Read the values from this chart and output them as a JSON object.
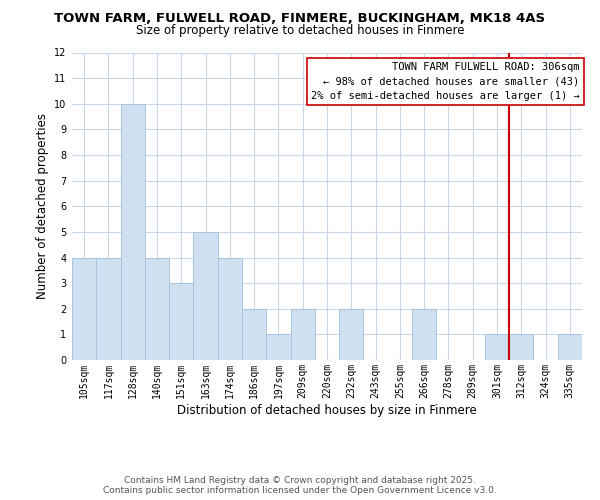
{
  "title": "TOWN FARM, FULWELL ROAD, FINMERE, BUCKINGHAM, MK18 4AS",
  "subtitle": "Size of property relative to detached houses in Finmere",
  "xlabel": "Distribution of detached houses by size in Finmere",
  "ylabel": "Number of detached properties",
  "bar_labels": [
    "105sqm",
    "117sqm",
    "128sqm",
    "140sqm",
    "151sqm",
    "163sqm",
    "174sqm",
    "186sqm",
    "197sqm",
    "209sqm",
    "220sqm",
    "232sqm",
    "243sqm",
    "255sqm",
    "266sqm",
    "278sqm",
    "289sqm",
    "301sqm",
    "312sqm",
    "324sqm",
    "335sqm"
  ],
  "bar_values": [
    4,
    4,
    10,
    4,
    3,
    5,
    4,
    2,
    1,
    2,
    0,
    2,
    0,
    0,
    2,
    0,
    0,
    1,
    1,
    0,
    1
  ],
  "bar_color": "#cfe0f0",
  "bar_edgecolor": "#aac4dd",
  "grid_color": "#c8d8e8",
  "ylim": [
    0,
    12
  ],
  "yticks": [
    0,
    1,
    2,
    3,
    4,
    5,
    6,
    7,
    8,
    9,
    10,
    11,
    12
  ],
  "vline_x_index": 17.5,
  "vline_color": "#cc0000",
  "annotation_title": "TOWN FARM FULWELL ROAD: 306sqm",
  "annotation_line1": "← 98% of detached houses are smaller (43)",
  "annotation_line2": "2% of semi-detached houses are larger (1) →",
  "footer_line1": "Contains HM Land Registry data © Crown copyright and database right 2025.",
  "footer_line2": "Contains public sector information licensed under the Open Government Licence v3.0.",
  "background_color": "#ffffff",
  "title_fontsize": 9.5,
  "subtitle_fontsize": 8.5,
  "xlabel_fontsize": 8.5,
  "ylabel_fontsize": 8.5,
  "tick_fontsize": 7,
  "annotation_fontsize": 7.5,
  "footer_fontsize": 6.5
}
